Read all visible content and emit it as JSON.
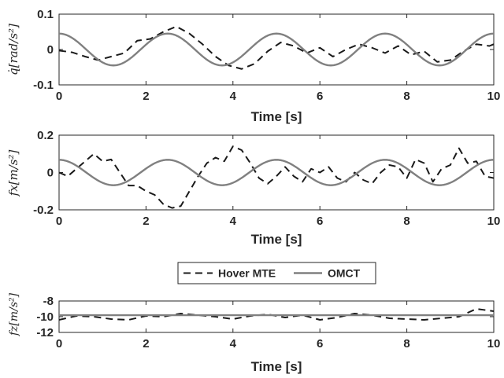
{
  "chart_data": [
    {
      "type": "line",
      "xlabel": "Time [s]",
      "ylabel": "q̇[rad/s²]",
      "xlim": [
        0,
        10
      ],
      "ylim": [
        -0.1,
        0.1
      ],
      "xticks": [
        "0",
        "2",
        "4",
        "6",
        "8",
        "10"
      ],
      "yticks": [
        "0.1",
        "0",
        "-0.1"
      ],
      "ytick_values": [
        0.1,
        0,
        -0.1
      ],
      "series": [
        {
          "style": "dashed",
          "x": [
            0,
            0.3,
            0.6,
            0.9,
            1.2,
            1.5,
            1.8,
            2.1,
            2.4,
            2.7,
            3.0,
            3.3,
            3.6,
            3.9,
            4.2,
            4.5,
            4.8,
            5.1,
            5.4,
            5.7,
            6.0,
            6.3,
            6.6,
            6.9,
            7.2,
            7.5,
            7.8,
            8.1,
            8.4,
            8.7,
            9.0,
            9.3,
            9.6,
            9.9,
            10
          ],
          "y": [
            -0.003,
            -0.008,
            -0.02,
            -0.03,
            -0.02,
            -0.01,
            0.025,
            0.03,
            0.05,
            0.065,
            0.045,
            0.015,
            -0.02,
            -0.045,
            -0.055,
            -0.04,
            -0.005,
            0.02,
            0.01,
            -0.01,
            0.005,
            -0.02,
            0.0,
            0.015,
            0.005,
            -0.01,
            0.01,
            -0.015,
            -0.005,
            -0.035,
            -0.03,
            -0.005,
            0.015,
            0.01,
            0.015
          ]
        },
        {
          "style": "solid",
          "function": "sine",
          "amplitude": 0.045,
          "period": 2.5,
          "phase": "cos"
        }
      ]
    },
    {
      "type": "line",
      "xlabel": "Time [s]",
      "ylabel": "fx[m/s²]",
      "xlim": [
        0,
        10
      ],
      "ylim": [
        -0.2,
        0.2
      ],
      "xticks": [
        "0",
        "2",
        "4",
        "6",
        "8",
        "10"
      ],
      "yticks": [
        "0.2",
        "0",
        "-0.2"
      ],
      "ytick_values": [
        0.2,
        0,
        -0.2
      ],
      "series": [
        {
          "style": "dashed",
          "x": [
            0,
            0.2,
            0.4,
            0.6,
            0.8,
            1.0,
            1.2,
            1.4,
            1.6,
            1.8,
            2.0,
            2.2,
            2.4,
            2.6,
            2.8,
            3.0,
            3.2,
            3.4,
            3.6,
            3.8,
            4.0,
            4.2,
            4.4,
            4.6,
            4.8,
            5.0,
            5.2,
            5.4,
            5.6,
            5.8,
            6.0,
            6.2,
            6.4,
            6.6,
            6.8,
            7.0,
            7.2,
            7.4,
            7.6,
            7.8,
            8.0,
            8.2,
            8.4,
            8.6,
            8.8,
            9.0,
            9.2,
            9.4,
            9.6,
            9.8,
            10
          ],
          "y": [
            0.0,
            -0.02,
            0.02,
            0.06,
            0.1,
            0.06,
            0.07,
            0.0,
            -0.07,
            -0.07,
            -0.1,
            -0.12,
            -0.17,
            -0.19,
            -0.18,
            -0.1,
            -0.02,
            0.05,
            0.08,
            0.06,
            0.14,
            0.12,
            0.05,
            -0.03,
            -0.06,
            -0.02,
            0.03,
            -0.02,
            -0.05,
            0.02,
            0.0,
            0.03,
            -0.03,
            -0.05,
            0.0,
            -0.04,
            -0.06,
            0.0,
            0.04,
            0.03,
            -0.03,
            0.07,
            0.05,
            -0.05,
            0.02,
            0.04,
            0.13,
            0.05,
            0.06,
            -0.02,
            -0.03
          ]
        },
        {
          "style": "solid",
          "function": "sine",
          "amplitude": 0.068,
          "period": 2.5,
          "phase": "cos"
        }
      ]
    },
    {
      "type": "line",
      "xlabel": "Time [s]",
      "ylabel": "fz[m/s²]",
      "xlim": [
        0,
        10
      ],
      "ylim": [
        -12,
        -8
      ],
      "xticks": [
        "0",
        "2",
        "4",
        "6",
        "8",
        "10"
      ],
      "yticks": [
        "-8",
        "-10",
        "-12"
      ],
      "ytick_values": [
        -8,
        -10,
        -12
      ],
      "series": [
        {
          "style": "dashed",
          "x": [
            0,
            0.4,
            0.8,
            1.2,
            1.6,
            2.0,
            2.4,
            2.8,
            3.2,
            3.6,
            4.0,
            4.4,
            4.8,
            5.2,
            5.6,
            6.0,
            6.4,
            6.8,
            7.2,
            7.6,
            8.0,
            8.4,
            8.8,
            9.2,
            9.6,
            10
          ],
          "y": [
            -10.4,
            -9.9,
            -10.0,
            -10.3,
            -10.4,
            -9.9,
            -10.0,
            -9.6,
            -9.8,
            -10.0,
            -10.3,
            -9.9,
            -9.7,
            -10.1,
            -9.8,
            -10.4,
            -10.1,
            -9.6,
            -9.8,
            -10.2,
            -10.3,
            -10.4,
            -10.2,
            -10.0,
            -9.0,
            -9.3
          ]
        },
        {
          "style": "solid",
          "function": "constant",
          "value": -9.81
        }
      ]
    }
  ],
  "legend": {
    "placement": "between middle and bottom panels",
    "entries": [
      {
        "label": "Hover MTE",
        "style": "dashed"
      },
      {
        "label": "OMCT",
        "style": "solid"
      }
    ]
  },
  "colors": {
    "dashed_series": "#1a1a1a",
    "solid_series": "#808080",
    "axes": "#262626"
  }
}
